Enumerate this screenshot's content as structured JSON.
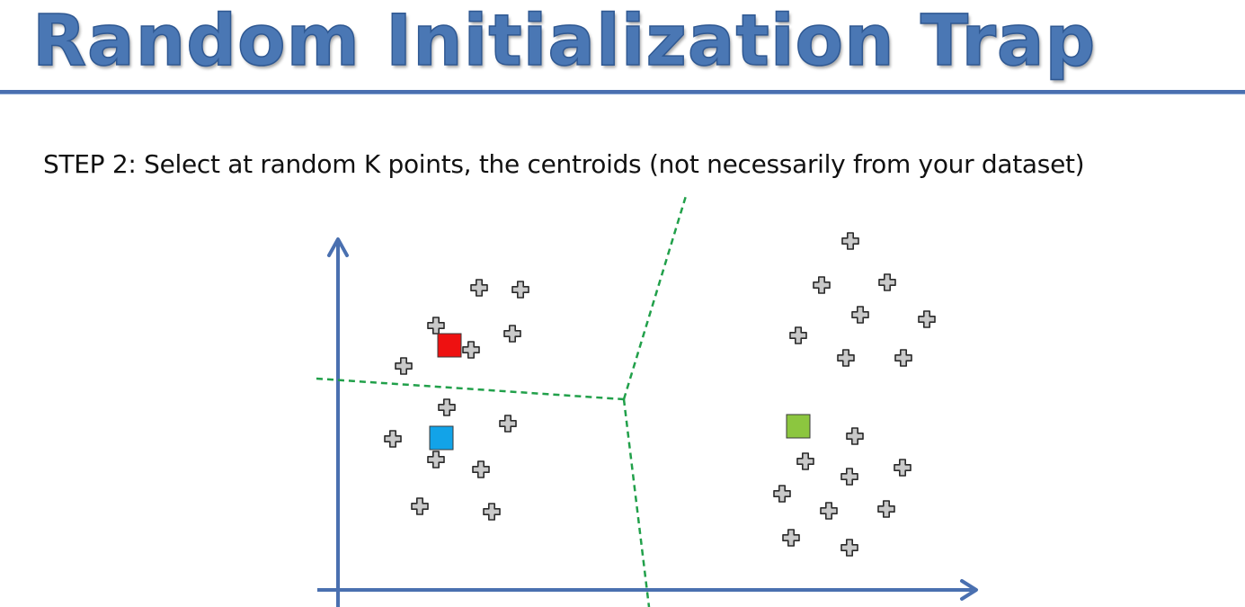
{
  "slide": {
    "title": "Random Initialization Trap",
    "step_text": "STEP 2: Select at random K points, the centroids (not necessarily from your dataset)"
  },
  "colors": {
    "title": "#4a77b4",
    "title_rule": "#4a70b0",
    "axis": "#4a70b0",
    "boundary": "#21a04a",
    "data_point_fill": "#c9c9c9",
    "data_point_stroke": "#2a2a2a",
    "centroid_red": "#ee1111",
    "centroid_blue": "#12a3e8",
    "centroid_green": "#8cc63f"
  },
  "icons": {
    "data_point": "plus-icon",
    "centroid": "square-icon"
  }
}
